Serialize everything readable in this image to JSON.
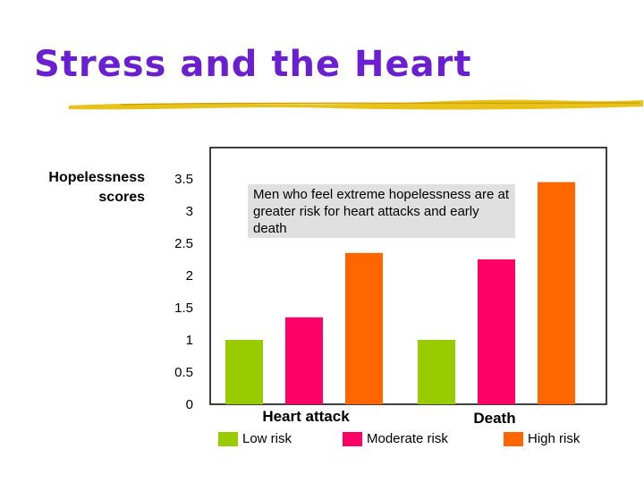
{
  "slide": {
    "title": "Stress and the Heart"
  },
  "chart_data": {
    "type": "bar",
    "ylabel": "Hopelessness scores",
    "ylim": [
      0,
      3.5
    ],
    "yticks": [
      "0",
      "0.5",
      "1",
      "1.5",
      "2",
      "2.5",
      "3",
      "3.5"
    ],
    "categories": [
      "Heart attack",
      "Death"
    ],
    "series": [
      {
        "name": "Low risk",
        "color": "#99cc00",
        "values": [
          1.0,
          1.0
        ]
      },
      {
        "name": "Moderate risk",
        "color": "#ff0066",
        "values": [
          1.35,
          2.25
        ]
      },
      {
        "name": "High risk",
        "color": "#ff6600",
        "values": [
          2.35,
          3.45
        ]
      }
    ],
    "annotation": "Men who feel extreme hopelessness are at greater risk for heart attacks and early death",
    "grid": false,
    "legend_position": "bottom"
  }
}
